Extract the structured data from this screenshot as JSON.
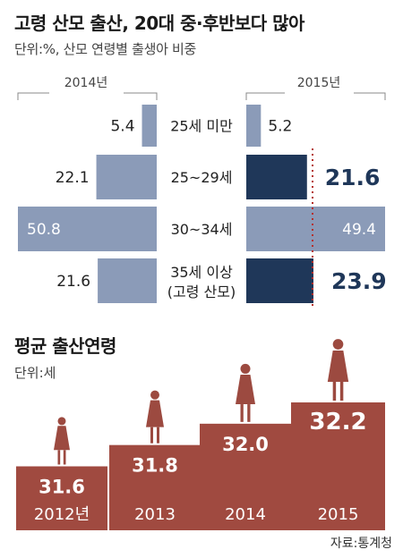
{
  "chart_data": [
    {
      "type": "bar",
      "orientation": "horizontal-butterfly",
      "title": "고령 산모 출산, 20대 중·후반보다 많아",
      "unit_label": "단위:%, 산모 연령별 출생아 비중",
      "categories": [
        "25세 미만",
        "25~29세",
        "30~34세",
        "35세 이상\n(고령 산모)"
      ],
      "series": [
        {
          "name": "2014년",
          "values": [
            5.4,
            22.1,
            50.8,
            21.6
          ],
          "color": "#8b9bb8"
        },
        {
          "name": "2015년",
          "values": [
            5.2,
            21.6,
            49.4,
            23.9
          ],
          "color": "#8b9bb8",
          "highlight_color": "#1f3759",
          "highlight_indices": [
            1,
            3
          ]
        }
      ],
      "value_labels": {
        "2014년": [
          "5.4",
          "22.1",
          "50.8",
          "21.6"
        ],
        "2015년": [
          "5.2",
          "21.6",
          "49.4",
          "23.9"
        ]
      },
      "xlim": [
        0,
        55
      ]
    },
    {
      "type": "bar",
      "title": "평균 출산연령",
      "unit_label": "단위:세",
      "categories": [
        "2012년",
        "2013",
        "2014",
        "2015"
      ],
      "values": [
        31.6,
        31.8,
        32.0,
        32.2
      ],
      "value_labels": [
        "31.6",
        "31.8",
        "32.0",
        "32.2"
      ],
      "color": "#a04a40",
      "ylim": [
        31.0,
        32.2
      ]
    }
  ],
  "source": "자료:통계청",
  "colors": {
    "bar_light": "#8b9bb8",
    "bar_dark": "#1f3759",
    "bar_red": "#a04a40",
    "divider_dot": "#b5302b",
    "silhouette": "#9c4a40"
  },
  "icons": [
    "woman-silhouette-icon"
  ]
}
